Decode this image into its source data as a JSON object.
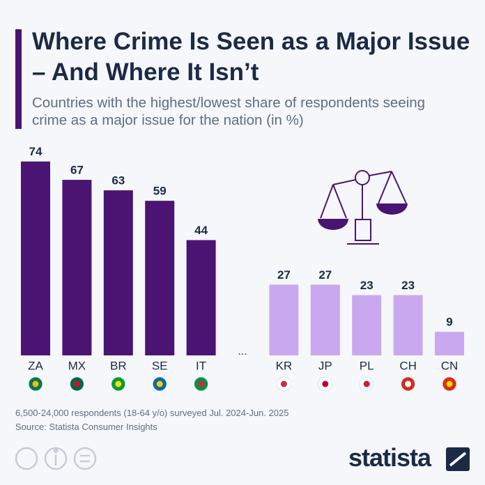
{
  "chart_data": {
    "type": "bar",
    "title": "Where Crime Is Seen as a Major Issue – And Where It Isn’t",
    "subtitle": "Countries with the highest/lowest share of respondents seeing crime as a major issue for the nation (in %)",
    "categories": [
      "ZA",
      "MX",
      "BR",
      "SE",
      "IT",
      "...",
      "KR",
      "JP",
      "PL",
      "CH",
      "CN"
    ],
    "values": [
      74,
      67,
      63,
      59,
      44,
      null,
      27,
      27,
      23,
      23,
      9
    ],
    "colors": [
      "#4a1473",
      "#4a1473",
      "#4a1473",
      "#4a1473",
      "#4a1473",
      null,
      "#c9a8f0",
      "#c9a8f0",
      "#c9a8f0",
      "#c9a8f0",
      "#c9a8f0"
    ],
    "note": "6,500-24,000 respondents (18-64 y/o) surveyed Jul. 2024-Jun. 2025",
    "source": "Source: Statista Consumer Insights",
    "logo": "statista"
  }
}
